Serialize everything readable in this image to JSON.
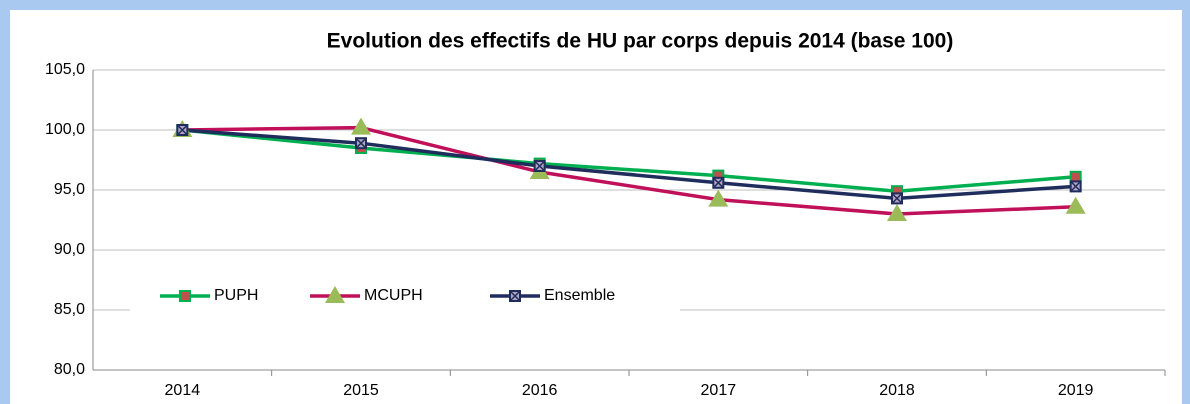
{
  "chart_data": {
    "type": "line",
    "title": "Evolution des effectifs de HU par corps depuis 2014 (base 100)",
    "categories": [
      "2014",
      "2015",
      "2016",
      "2017",
      "2018",
      "2019"
    ],
    "series": [
      {
        "name": "PUPH",
        "color": "#00b050",
        "marker": "square",
        "marker_color": "#c0504d",
        "values": [
          100,
          98.5,
          97.2,
          96.2,
          94.9,
          96.1
        ]
      },
      {
        "name": "MCUPH",
        "color": "#c0105a",
        "marker": "triangle",
        "marker_color": "#9bbb59",
        "values": [
          100,
          100.2,
          96.5,
          94.2,
          93.0,
          93.6
        ]
      },
      {
        "name": "Ensemble",
        "color": "#1f2d5c",
        "marker": "xsquare",
        "marker_color": "#b3a2c7",
        "values": [
          100,
          98.9,
          97.0,
          95.6,
          94.3,
          95.3
        ]
      }
    ],
    "ylim": [
      80,
      105
    ],
    "yticks": [
      {
        "value": 80,
        "label": "80,0"
      },
      {
        "value": 85,
        "label": "85,0"
      },
      {
        "value": 90,
        "label": "90,0"
      },
      {
        "value": 95,
        "label": "95,0"
      },
      {
        "value": 100,
        "label": "100,0"
      },
      {
        "value": 105,
        "label": "105,0"
      }
    ],
    "grid": true,
    "legend": "lower left"
  }
}
